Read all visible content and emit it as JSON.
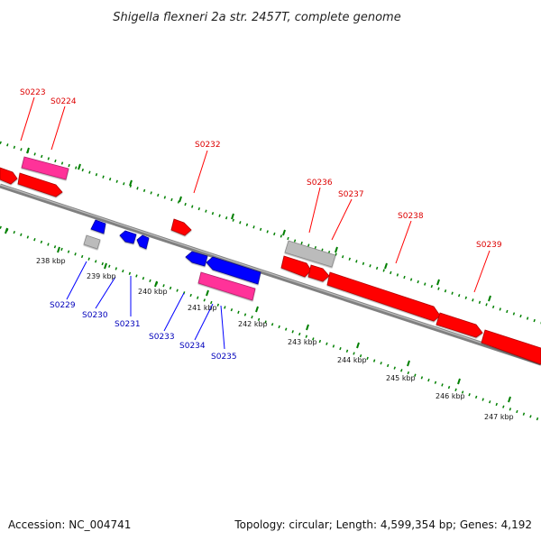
{
  "title": "Shigella flexneri 2a str. 2457T, complete genome",
  "footer": {
    "accession": "Accession: NC_004741",
    "summary": "Topology: circular; Length: 4,599,354 bp; Genes: 4,192"
  },
  "colors": {
    "forward_gene": "#ff0000",
    "reverse_gene": "#0000ff",
    "pseudo_gene": "#bbbbbb",
    "rna_gene": "#ff3399",
    "forward_label": "#dd0000",
    "reverse_label": "#0000bb",
    "backbone": "#808080",
    "ticks": "#008000"
  },
  "ticks": [
    {
      "label": "238 kbp"
    },
    {
      "label": "239 kbp"
    },
    {
      "label": "240 kbp"
    },
    {
      "label": "241 kbp"
    },
    {
      "label": "242 kbp"
    },
    {
      "label": "243 kbp"
    },
    {
      "label": "244 kbp"
    },
    {
      "label": "245 kbp"
    },
    {
      "label": "246 kbp"
    },
    {
      "label": "247 kbp"
    }
  ],
  "forward_labels": [
    "S0223",
    "S0224",
    "S0232",
    "S0236",
    "S0237",
    "S0238",
    "S0239"
  ],
  "reverse_labels": [
    "S0229",
    "S0230",
    "S0231",
    "S0233",
    "S0234",
    "S0235"
  ]
}
